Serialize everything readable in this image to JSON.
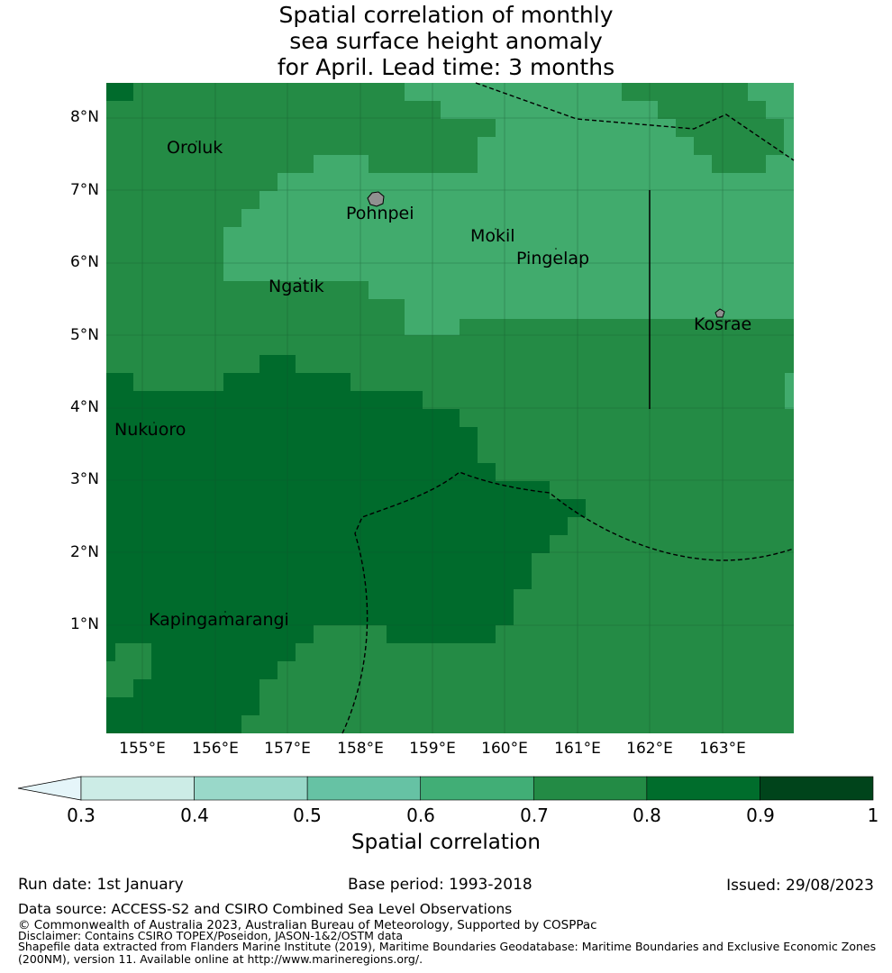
{
  "title": {
    "line1": "Spatial correlation of monthly",
    "line2": "sea surface height anomaly",
    "line3": "for April. Lead time: 3 months"
  },
  "map": {
    "lat_labels": [
      "8°N",
      "7°N",
      "6°N",
      "5°N",
      "4°N",
      "3°N",
      "2°N",
      "1°N"
    ],
    "lon_labels": [
      "155°E",
      "156°E",
      "157°E",
      "158°E",
      "159°E",
      "160°E",
      "161°E",
      "162°E",
      "163°E"
    ],
    "places": [
      {
        "name": "Oroluk"
      },
      {
        "name": "Pohnpei"
      },
      {
        "name": "Mokil"
      },
      {
        "name": "Pingelap"
      },
      {
        "name": "Ngatik"
      },
      {
        "name": "Kosrae"
      },
      {
        "name": "Nukuoro"
      },
      {
        "name": "Kapingamarangi"
      }
    ],
    "colors": {
      "c06": "#41ab6d",
      "c07": "#248b45",
      "c08": "#006b2c",
      "land": "#909090",
      "grid": "#1f4f2a"
    }
  },
  "colorbar": {
    "ticks": [
      "0.3",
      "0.4",
      "0.5",
      "0.6",
      "0.7",
      "0.8",
      "0.9",
      "1"
    ],
    "colors": [
      "#e5f5f9",
      "#ccece6",
      "#99d8c9",
      "#66c2a4",
      "#41ae76",
      "#238b45",
      "#006d2c",
      "#00441b"
    ],
    "label": "Spatial correlation"
  },
  "footer": {
    "run_date": "Run date: 1st January",
    "base_period": "Base period: 1993-2018",
    "issued": "Issued: 29/08/2023",
    "data_source": "Data source: ACCESS-S2 and CSIRO Combined Sea Level Observations",
    "copyright": "© Commonwealth of Australia 2023, Australian Bureau of Meteorology, Supported by COSPPac",
    "disclaimer": "Disclaimer: Contains CSIRO TOPEX/Poseidon, JASON-1&2/OSTM data",
    "shapefile1": "Shapefile data extracted from Flanders Marine Institute (2019), Maritime Boundaries Geodatabase: Maritime Boundaries and Exclusive Economic Zones",
    "shapefile2": "(200NM), version 11. Available online at http://www.marineregions.org/."
  }
}
